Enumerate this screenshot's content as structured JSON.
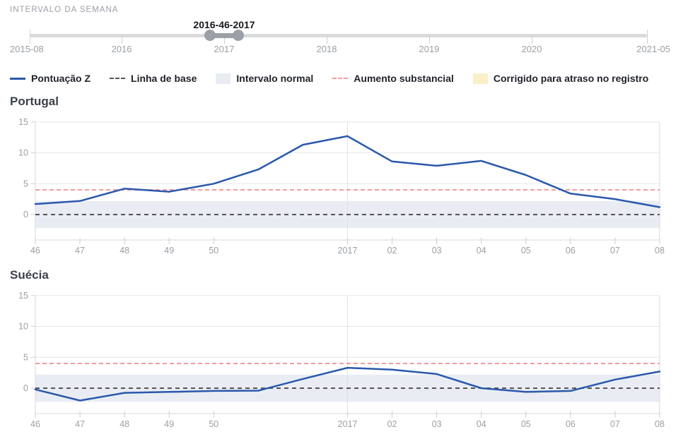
{
  "slider": {
    "title": "INTERVALO DA SEMANA",
    "range_label": "2016-46-2017",
    "axis_labels": [
      "2015-08",
      "2016",
      "2017",
      "2018",
      "2019",
      "2020",
      "2021-05"
    ]
  },
  "legend": {
    "items": [
      {
        "label": "Pontuação Z",
        "icon": "solid-line",
        "color": "#2b58ab"
      },
      {
        "label": "Linha de base",
        "icon": "dashed-line",
        "color": "#555555"
      },
      {
        "label": "Intervalo normal",
        "icon": "swatch",
        "color": "#e9edf3"
      },
      {
        "label": "Aumento substancial",
        "icon": "dashed-line",
        "color": "#f79b9b"
      },
      {
        "label": "Corrigido para atraso no registro",
        "icon": "swatch",
        "color": "#faf0c8"
      }
    ]
  },
  "chart_data": [
    {
      "type": "line",
      "title": "Portugal",
      "x_labels": [
        "46",
        "47",
        "48",
        "49",
        "50",
        "",
        "",
        "2017",
        "02",
        "03",
        "04",
        "05",
        "06",
        "07",
        "08"
      ],
      "series": [
        {
          "name": "Pontuação Z",
          "values": [
            1.7,
            2.2,
            4.2,
            3.7,
            5.0,
            7.3,
            11.3,
            12.7,
            8.6,
            7.9,
            8.7,
            6.4,
            3.4,
            2.5,
            1.2
          ]
        }
      ],
      "baseline": 0,
      "substantial_increase_threshold": 4,
      "normal_range": [
        -2.2,
        2.2
      ],
      "yticks": [
        15,
        10,
        5,
        0
      ],
      "ylim": [
        -4,
        15
      ],
      "grid": "horizontal + vertical line at 2017",
      "legend_position": "top"
    },
    {
      "type": "line",
      "title": "Suécia",
      "x_labels": [
        "46",
        "47",
        "48",
        "49",
        "50",
        "",
        "",
        "2017",
        "02",
        "03",
        "04",
        "05",
        "06",
        "07",
        "08"
      ],
      "series": [
        {
          "name": "Pontuação Z",
          "values": [
            -0.2,
            -2.0,
            -0.75,
            -0.6,
            -0.45,
            -0.4,
            1.5,
            3.3,
            3.0,
            2.3,
            0.0,
            -0.6,
            -0.45,
            1.4,
            2.7
          ]
        }
      ],
      "baseline": 0,
      "substantial_increase_threshold": 4,
      "normal_range": [
        -2.2,
        2.2
      ],
      "yticks": [
        15,
        10,
        5,
        0
      ],
      "ylim": [
        -4,
        15
      ],
      "grid": "horizontal + vertical line at 2017",
      "legend_position": "top"
    }
  ],
  "colors": {
    "z_score_line": "#2b58ab",
    "baseline_line": "#555555",
    "normal_range_band": "#e9edf3",
    "substantial_increase_line": "#f79b9b",
    "delay_corrected_fill": "#faf0c8",
    "axis_text": "#9aa0a6",
    "gridline": "#e7e7e7",
    "spine": "#d9d9d9",
    "slider_track": "#dbdbdb",
    "slider_handle": "#9aa0a6"
  }
}
